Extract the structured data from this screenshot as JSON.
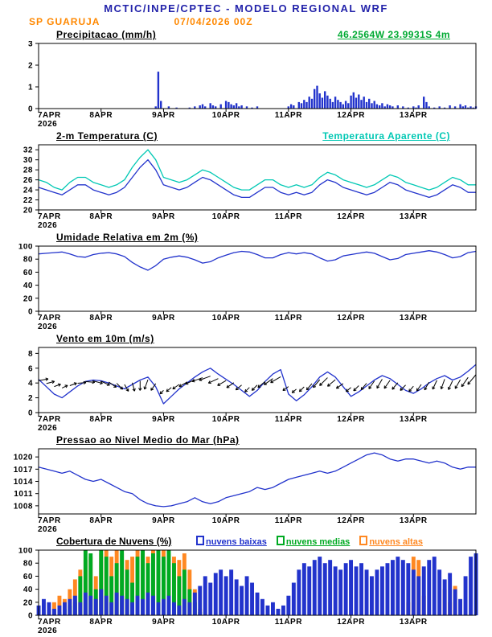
{
  "header": {
    "title": "MCTIC/INPE/CPTEC - MODELO REGIONAL WRF",
    "station": "SP GUARUJA",
    "run": "07/04/2026 00Z",
    "location": "46.2564W 23.9931S 4m"
  },
  "colors": {
    "title_blue": "#2222aa",
    "accent_orange": "#ff8800",
    "location_green": "#00aa33",
    "line_blue": "#2233cc",
    "apparent_cyan": "#00c8b4",
    "cloud_low_blue": "#2233cc",
    "cloud_mid_green": "#00aa22",
    "cloud_high_orange": "#ff8822",
    "axis_black": "#000000"
  },
  "x_axis": {
    "tick_labels": [
      "7APR",
      "8APR",
      "9APR",
      "10APR",
      "11APR",
      "12APR",
      "13APR"
    ],
    "year_label": "2026",
    "total_hours": 168
  },
  "chart_data": [
    {
      "id": "precip",
      "type": "bar",
      "title": "Precipitacao (mm/h)",
      "ylim": [
        0,
        3
      ],
      "yticks": [
        0,
        1,
        2,
        3
      ],
      "series": [
        {
          "name": "precipitacao",
          "render": "bar",
          "color": "#2233cc",
          "step_hours": 1,
          "values": [
            0,
            0,
            0,
            0,
            0,
            0,
            0,
            0,
            0,
            0,
            0,
            0,
            0,
            0,
            0,
            0,
            0,
            0,
            0,
            0,
            0,
            0,
            0,
            0,
            0,
            0,
            0,
            0,
            0,
            0,
            0,
            0,
            0,
            0,
            0,
            0,
            0,
            0,
            0,
            0,
            0,
            0,
            0,
            0,
            0,
            0.1,
            1.7,
            0.35,
            0,
            0,
            0.1,
            0,
            0,
            0.05,
            0,
            0,
            0,
            0,
            0.05,
            0,
            0.1,
            0,
            0.15,
            0.2,
            0.1,
            0,
            0.25,
            0.15,
            0.1,
            0,
            0.2,
            0,
            0.35,
            0.3,
            0.2,
            0.15,
            0.25,
            0.1,
            0.15,
            0,
            0.1,
            0,
            0.05,
            0,
            0.1,
            0,
            0,
            0,
            0,
            0,
            0,
            0,
            0,
            0,
            0,
            0,
            0.1,
            0.2,
            0.15,
            0,
            0.3,
            0.25,
            0.4,
            0.3,
            0.55,
            0.45,
            0.9,
            1.05,
            0.7,
            0.5,
            0.8,
            0.6,
            0.45,
            0.3,
            0.55,
            0.4,
            0.3,
            0.2,
            0.35,
            0.25,
            0.6,
            0.75,
            0.5,
            0.65,
            0.4,
            0.55,
            0.3,
            0.45,
            0.25,
            0.35,
            0.2,
            0.15,
            0.25,
            0.1,
            0.2,
            0.15,
            0.1,
            0,
            0.15,
            0,
            0.1,
            0,
            0.05,
            0,
            0.1,
            0.05,
            0.15,
            0,
            0.55,
            0.3,
            0.1,
            0,
            0.05,
            0,
            0.1,
            0,
            0.05,
            0,
            0.15,
            0,
            0.1,
            0,
            0.2,
            0.1,
            0.15,
            0.05,
            0.1,
            0.05,
            0.1
          ]
        }
      ]
    },
    {
      "id": "temp",
      "type": "line",
      "title": "2-m Temperatura (C)",
      "right_label": "Temperatura Aparente (C)",
      "ylim": [
        20,
        33
      ],
      "yticks": [
        20,
        22,
        24,
        26,
        28,
        30,
        32
      ],
      "series": [
        {
          "name": "temperatura-2m",
          "render": "line",
          "color": "#2233cc",
          "step_hours": 3,
          "values": [
            24.5,
            24.0,
            23.5,
            23.0,
            24.0,
            25.0,
            25.0,
            24.0,
            23.5,
            23.0,
            23.5,
            24.5,
            26.5,
            28.5,
            30.0,
            28.0,
            25.0,
            24.5,
            24.0,
            24.5,
            25.5,
            26.5,
            26.0,
            25.0,
            24.0,
            23.0,
            22.5,
            22.5,
            23.5,
            24.5,
            24.5,
            23.5,
            23.0,
            23.5,
            23.0,
            23.5,
            25.0,
            26.0,
            25.5,
            24.5,
            24.0,
            23.5,
            23.0,
            23.5,
            24.5,
            25.5,
            25.0,
            24.0,
            23.5,
            23.0,
            22.5,
            23.0,
            24.0,
            25.0,
            24.5,
            23.5,
            23.5
          ]
        },
        {
          "name": "temperatura-aparente",
          "render": "line",
          "color": "#00c8b4",
          "step_hours": 3,
          "values": [
            26.0,
            25.5,
            24.5,
            24.0,
            25.5,
            26.5,
            26.5,
            25.5,
            25.0,
            24.5,
            25.0,
            26.0,
            28.5,
            30.5,
            32.0,
            30.0,
            26.5,
            26.0,
            25.5,
            26.0,
            27.0,
            28.0,
            27.5,
            26.5,
            25.5,
            24.5,
            24.0,
            24.0,
            25.0,
            26.0,
            26.0,
            25.0,
            24.5,
            25.0,
            24.5,
            25.0,
            26.5,
            27.5,
            27.0,
            26.0,
            25.5,
            25.0,
            24.5,
            25.0,
            26.0,
            27.0,
            26.5,
            25.5,
            25.0,
            24.5,
            24.0,
            24.5,
            25.5,
            26.5,
            26.0,
            25.0,
            25.0
          ]
        }
      ]
    },
    {
      "id": "humidity",
      "type": "line",
      "title": "Umidade Relativa em 2m (%)",
      "ylim": [
        0,
        100
      ],
      "yticks": [
        0,
        20,
        40,
        60,
        80,
        100
      ],
      "series": [
        {
          "name": "umidade-relativa",
          "render": "line",
          "color": "#2233cc",
          "step_hours": 3,
          "values": [
            88,
            89,
            90,
            91,
            88,
            84,
            83,
            87,
            89,
            90,
            88,
            84,
            75,
            68,
            63,
            70,
            80,
            83,
            85,
            83,
            79,
            74,
            76,
            82,
            86,
            90,
            92,
            91,
            87,
            82,
            82,
            87,
            90,
            88,
            90,
            88,
            82,
            77,
            79,
            85,
            87,
            89,
            91,
            89,
            84,
            79,
            81,
            87,
            89,
            91,
            93,
            91,
            87,
            82,
            84,
            90,
            92
          ]
        }
      ]
    },
    {
      "id": "wind",
      "type": "wind",
      "title": "Vento em 10m (m/s)",
      "ylim": [
        0,
        8.8
      ],
      "yticks": [
        0,
        2,
        4,
        6,
        8
      ],
      "series": [
        {
          "name": "vento-10m",
          "render": "line",
          "color": "#2233cc",
          "step_hours": 3,
          "values": [
            4.5,
            3.5,
            2.5,
            2.0,
            2.8,
            3.6,
            4.2,
            4.4,
            4.3,
            4.0,
            3.6,
            3.2,
            3.8,
            4.4,
            4.8,
            3.5,
            1.2,
            2.2,
            3.2,
            4.0,
            4.8,
            5.5,
            6.0,
            5.2,
            4.5,
            3.8,
            3.0,
            2.2,
            3.0,
            4.2,
            5.2,
            5.8,
            2.5,
            1.6,
            2.4,
            3.5,
            4.8,
            5.5,
            4.8,
            3.5,
            2.2,
            2.8,
            3.6,
            4.4,
            5.0,
            4.6,
            3.8,
            3.0,
            2.6,
            3.2,
            4.0,
            4.6,
            5.0,
            4.4,
            4.8,
            5.6,
            6.5
          ]
        }
      ],
      "barbs": {
        "step_hours": 3,
        "color": "#000000",
        "dirs_deg": [
          80,
          75,
          70,
          65,
          70,
          85,
          95,
          105,
          115,
          125,
          135,
          150,
          165,
          180,
          200,
          215,
          225,
          230,
          235,
          240,
          245,
          250,
          250,
          245,
          240,
          235,
          230,
          225,
          225,
          230,
          235,
          240,
          235,
          230,
          225,
          220,
          220,
          225,
          230,
          235,
          230,
          225,
          220,
          215,
          210,
          215,
          220,
          225,
          220,
          215,
          210,
          205,
          200,
          205,
          210,
          215,
          220
        ]
      }
    },
    {
      "id": "pressure",
      "type": "line",
      "title": "Pressao ao Nivel Medio do Mar (hPa)",
      "ylim": [
        1006,
        1022
      ],
      "yticks": [
        1008,
        1011,
        1014,
        1017,
        1020
      ],
      "series": [
        {
          "name": "pressao-nivel-mar",
          "render": "line",
          "color": "#2233cc",
          "step_hours": 3,
          "values": [
            1017.5,
            1017.0,
            1016.5,
            1016.0,
            1016.5,
            1015.5,
            1014.5,
            1014.0,
            1014.5,
            1013.5,
            1012.5,
            1011.5,
            1011.0,
            1009.5,
            1008.5,
            1008.0,
            1007.8,
            1008.0,
            1008.5,
            1009.0,
            1010.0,
            1009.0,
            1008.5,
            1009.0,
            1010.0,
            1010.5,
            1011.0,
            1011.5,
            1012.5,
            1012.0,
            1012.5,
            1013.5,
            1014.5,
            1015.0,
            1015.5,
            1016.0,
            1016.5,
            1016.0,
            1016.5,
            1017.5,
            1018.5,
            1019.5,
            1020.5,
            1021.0,
            1020.5,
            1019.5,
            1019.0,
            1019.5,
            1019.5,
            1019.0,
            1018.5,
            1019.0,
            1018.5,
            1017.5,
            1017.0,
            1017.5,
            1017.5
          ]
        }
      ]
    },
    {
      "id": "clouds",
      "type": "bar",
      "title": "Cobertura de Nuvens (%)",
      "ylim": [
        0,
        100
      ],
      "yticks": [
        0,
        20,
        40,
        60,
        80,
        100
      ],
      "legend": [
        {
          "label": "nuvens baixas",
          "color": "#2233cc"
        },
        {
          "label": "nuvens medias",
          "color": "#00aa22"
        },
        {
          "label": "nuvens altas",
          "color": "#ff8822"
        }
      ],
      "series": [
        {
          "name": "nuvens-altas",
          "render": "bar",
          "color": "#ff8822",
          "step_hours": 2,
          "values": [
            0,
            0,
            10,
            20,
            30,
            25,
            40,
            55,
            70,
            85,
            90,
            60,
            95,
            100,
            90,
            100,
            95,
            85,
            90,
            100,
            95,
            90,
            100,
            95,
            100,
            95,
            90,
            85,
            95,
            70,
            40,
            10,
            0,
            0,
            0,
            0,
            0,
            0,
            0,
            0,
            0,
            0,
            0,
            0,
            0,
            0,
            0,
            0,
            0,
            0,
            0,
            0,
            0,
            0,
            0,
            0,
            0,
            0,
            0,
            0,
            0,
            0,
            0,
            0,
            0,
            0,
            0,
            0,
            0,
            0,
            0,
            20,
            90,
            85,
            30,
            0,
            0,
            0,
            40,
            20,
            45,
            0,
            0,
            0,
            0
          ]
        },
        {
          "name": "nuvens-medias",
          "render": "bar",
          "color": "#00aa22",
          "step_hours": 2,
          "values": [
            0,
            0,
            0,
            0,
            5,
            10,
            15,
            20,
            60,
            100,
            95,
            40,
            100,
            90,
            60,
            80,
            100,
            70,
            50,
            90,
            100,
            80,
            95,
            100,
            90,
            100,
            80,
            60,
            70,
            40,
            20,
            5,
            0,
            0,
            0,
            0,
            0,
            0,
            0,
            0,
            0,
            0,
            0,
            0,
            0,
            0,
            0,
            0,
            0,
            0,
            0,
            0,
            0,
            0,
            0,
            0,
            0,
            0,
            0,
            0,
            0,
            0,
            0,
            0,
            0,
            0,
            0,
            0,
            0,
            0,
            0,
            0,
            0,
            0,
            0,
            0,
            0,
            0,
            0,
            0,
            0,
            0,
            0,
            0,
            0
          ]
        },
        {
          "name": "nuvens-baixas",
          "render": "bar",
          "color": "#2233cc",
          "step_hours": 2,
          "values": [
            15,
            25,
            20,
            10,
            15,
            20,
            25,
            30,
            20,
            35,
            30,
            25,
            40,
            30,
            20,
            35,
            30,
            25,
            20,
            30,
            25,
            35,
            30,
            20,
            25,
            30,
            20,
            15,
            25,
            20,
            35,
            45,
            60,
            50,
            65,
            70,
            60,
            70,
            55,
            45,
            60,
            50,
            35,
            25,
            15,
            20,
            10,
            15,
            30,
            50,
            70,
            80,
            75,
            85,
            90,
            80,
            85,
            75,
            70,
            80,
            85,
            75,
            80,
            70,
            60,
            70,
            75,
            80,
            85,
            90,
            85,
            80,
            70,
            60,
            75,
            85,
            90,
            70,
            55,
            65,
            40,
            25,
            60,
            90,
            95
          ]
        }
      ]
    }
  ]
}
